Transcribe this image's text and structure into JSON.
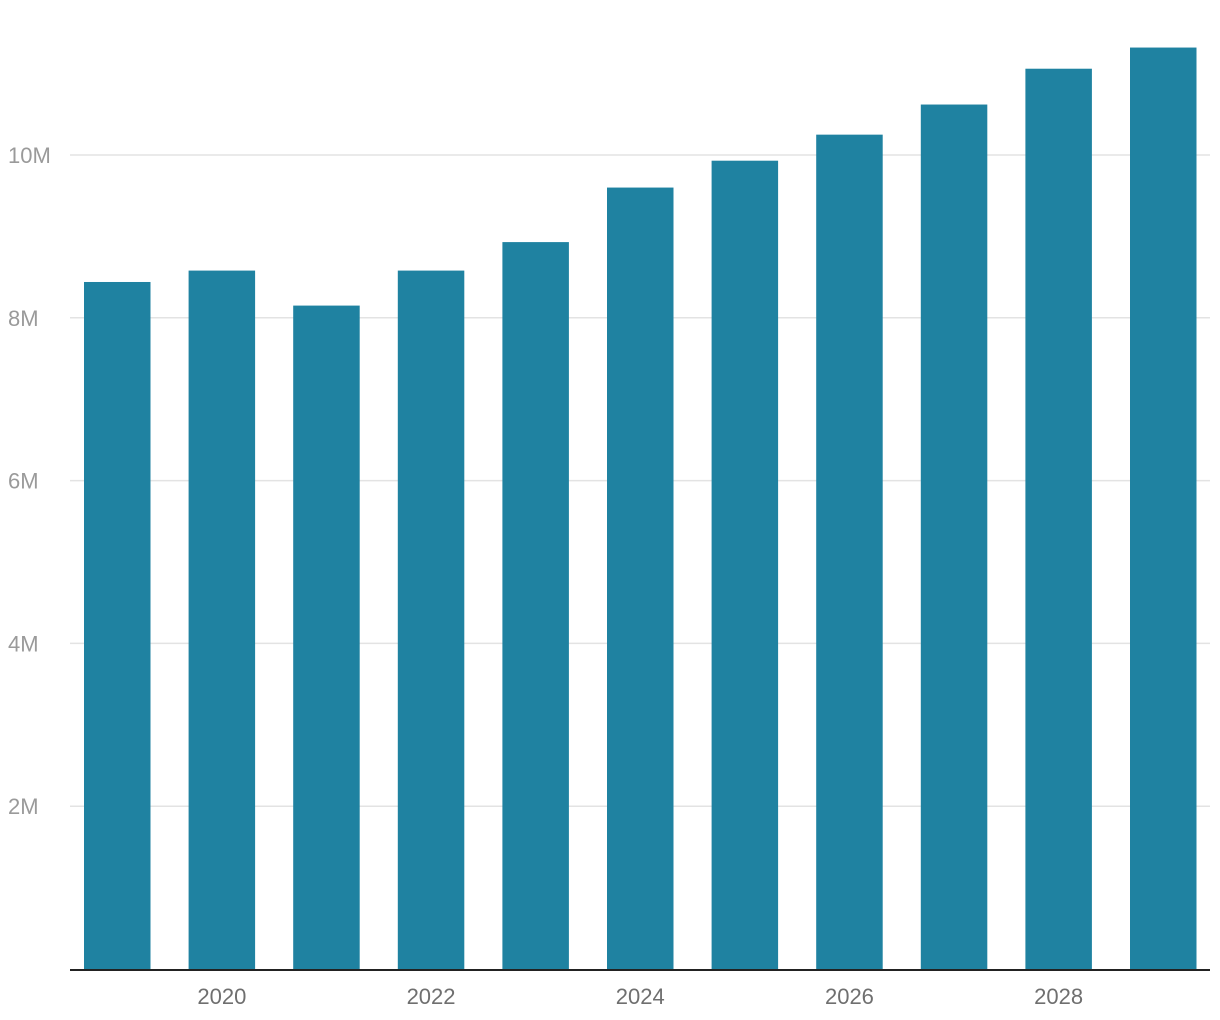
{
  "chart_data": {
    "type": "bar",
    "categories": [
      "2019",
      "2020",
      "2021",
      "2022",
      "2023",
      "2024",
      "2025",
      "2026",
      "2027",
      "2028",
      "2029"
    ],
    "series": [
      {
        "values": [
          8440000,
          8580000,
          8150000,
          8580000,
          8930000,
          9600000,
          9930000,
          10250000,
          10620000,
          11060000,
          11320000
        ]
      }
    ],
    "x_tick_labels": [
      "2020",
      "2022",
      "2024",
      "2026",
      "2028"
    ],
    "y_ticks": [
      {
        "value": 2000000,
        "label": "2M"
      },
      {
        "value": 4000000,
        "label": "4M"
      },
      {
        "value": 6000000,
        "label": "6M"
      },
      {
        "value": 8000000,
        "label": "8M"
      },
      {
        "value": 10000000,
        "label": "10M"
      }
    ],
    "ylim": [
      0,
      11400000
    ],
    "grid": true,
    "legend": "none",
    "title": "",
    "xlabel": "",
    "ylabel": "",
    "colors": {
      "bar": "#1f82a1",
      "grid": "#e3e3e3",
      "axis": "#222222",
      "y_tick_text": "#9a9a9a",
      "x_tick_text": "#6f6f6f"
    }
  }
}
